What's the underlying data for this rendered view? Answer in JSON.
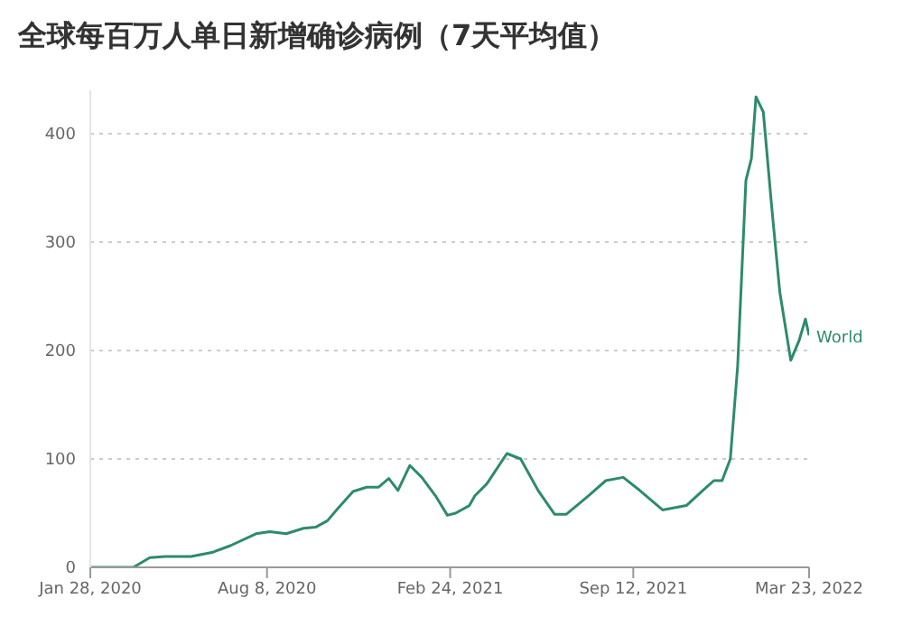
{
  "chart_data": {
    "type": "line",
    "title": "全球每百万人单日新增确诊病例（7天平均值）",
    "x": [
      "2020-01-28",
      "2020-03-15",
      "2020-04-02",
      "2020-04-19",
      "2020-05-17",
      "2020-06-10",
      "2020-06-29",
      "2020-07-27",
      "2020-08-11",
      "2020-08-29",
      "2020-09-17",
      "2020-09-30",
      "2020-10-13",
      "2020-10-24",
      "2020-11-10",
      "2020-11-25",
      "2020-12-08",
      "2020-12-19",
      "2020-12-29",
      "2021-01-11",
      "2021-01-24",
      "2021-02-08",
      "2021-02-21",
      "2021-03-02",
      "2021-03-17",
      "2021-03-23",
      "2021-04-05",
      "2021-04-27",
      "2021-05-12",
      "2021-05-31",
      "2021-06-18",
      "2021-07-01",
      "2021-07-25",
      "2021-08-13",
      "2021-09-01",
      "2021-09-19",
      "2021-10-14",
      "2021-11-09",
      "2021-11-27",
      "2021-12-09",
      "2021-12-18",
      "2021-12-27",
      "2022-01-04",
      "2022-01-13",
      "2022-01-19",
      "2022-01-24",
      "2022-02-01",
      "2022-02-10",
      "2022-02-19",
      "2022-03-03",
      "2022-03-12",
      "2022-03-19",
      "2022-03-23"
    ],
    "series": [
      {
        "name": "World",
        "color": "#2e8b6a",
        "values": [
          0,
          0,
          9,
          10,
          10,
          14,
          20,
          31,
          33,
          31,
          36,
          37,
          43,
          54,
          70,
          74,
          74,
          82,
          71,
          94,
          83,
          66,
          48,
          50,
          57,
          66,
          77,
          105,
          100,
          71,
          49,
          49,
          66,
          80,
          83,
          71,
          53,
          57,
          71,
          80,
          80,
          100,
          186,
          357,
          377,
          434,
          420,
          334,
          254,
          191,
          209,
          229,
          214
        ]
      }
    ],
    "xlim": [
      "2020-01-28",
      "2022-03-23"
    ],
    "xticks": [
      {
        "value": "2020-01-28",
        "label": "Jan 28, 2020"
      },
      {
        "value": "2020-08-08",
        "label": "Aug 8, 2020"
      },
      {
        "value": "2021-02-24",
        "label": "Feb 24, 2021"
      },
      {
        "value": "2021-09-12",
        "label": "Sep 12, 2021"
      },
      {
        "value": "2022-03-23",
        "label": "Mar 23, 2022"
      }
    ],
    "ylim": [
      0,
      440
    ],
    "yticks": [
      0,
      100,
      200,
      300,
      400
    ],
    "grid": "y",
    "marker": "none",
    "line_style": "solid"
  }
}
